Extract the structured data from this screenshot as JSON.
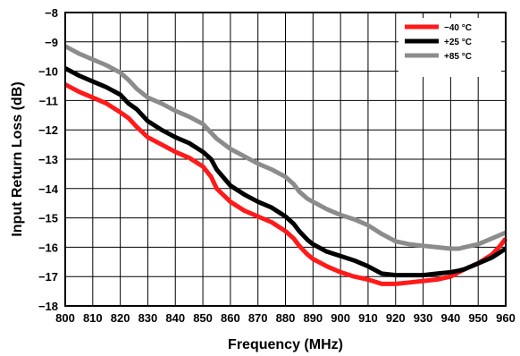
{
  "chart_data": {
    "type": "line",
    "title": "",
    "xlabel": "Frequency (MHz)",
    "ylabel": "Input Return Loss (dB)",
    "xlim": [
      800,
      960
    ],
    "ylim": [
      -18,
      -8
    ],
    "xticks": [
      800,
      810,
      820,
      830,
      840,
      850,
      860,
      870,
      880,
      890,
      900,
      910,
      920,
      930,
      940,
      950,
      960
    ],
    "yticks": [
      -8,
      -9,
      -10,
      -11,
      -12,
      -13,
      -14,
      -15,
      -16,
      -17,
      -18
    ],
    "grid": true,
    "legend_position": "top-right",
    "series": [
      {
        "name": "−40 °C",
        "color": "#ff1a1a",
        "x": [
          800,
          805,
          810,
          815,
          820,
          823,
          826,
          830,
          835,
          840,
          845,
          850,
          853,
          855,
          860,
          865,
          870,
          875,
          880,
          883,
          885,
          888,
          890,
          895,
          900,
          905,
          910,
          915,
          920,
          925,
          930,
          935,
          940,
          943,
          945,
          950,
          955,
          958,
          960
        ],
        "y": [
          -10.45,
          -10.7,
          -10.9,
          -11.1,
          -11.4,
          -11.6,
          -11.9,
          -12.25,
          -12.5,
          -12.75,
          -12.95,
          -13.25,
          -13.6,
          -14.0,
          -14.45,
          -14.75,
          -14.95,
          -15.15,
          -15.45,
          -15.7,
          -15.95,
          -16.25,
          -16.4,
          -16.65,
          -16.85,
          -17.0,
          -17.1,
          -17.25,
          -17.25,
          -17.2,
          -17.15,
          -17.1,
          -17.0,
          -16.85,
          -16.75,
          -16.55,
          -16.25,
          -15.95,
          -15.7
        ]
      },
      {
        "name": "+25 °C",
        "color": "#000000",
        "x": [
          800,
          805,
          810,
          815,
          820,
          823,
          826,
          830,
          835,
          840,
          845,
          850,
          853,
          855,
          860,
          865,
          870,
          875,
          880,
          883,
          885,
          888,
          890,
          895,
          900,
          905,
          910,
          915,
          920,
          925,
          930,
          935,
          940,
          943,
          945,
          950,
          955,
          960
        ],
        "y": [
          -9.9,
          -10.15,
          -10.35,
          -10.55,
          -10.8,
          -11.1,
          -11.3,
          -11.7,
          -12.0,
          -12.25,
          -12.45,
          -12.75,
          -13.0,
          -13.35,
          -13.9,
          -14.2,
          -14.45,
          -14.65,
          -14.95,
          -15.2,
          -15.45,
          -15.75,
          -15.9,
          -16.15,
          -16.3,
          -16.45,
          -16.65,
          -16.9,
          -16.95,
          -16.95,
          -16.95,
          -16.9,
          -16.85,
          -16.8,
          -16.75,
          -16.55,
          -16.35,
          -16.05
        ]
      },
      {
        "name": "+85 °C",
        "color": "#8c8c8c",
        "x": [
          800,
          805,
          810,
          815,
          820,
          823,
          826,
          830,
          835,
          840,
          845,
          850,
          853,
          855,
          860,
          865,
          870,
          875,
          880,
          883,
          885,
          888,
          890,
          895,
          900,
          905,
          910,
          915,
          920,
          925,
          930,
          935,
          940,
          943,
          945,
          950,
          955,
          960
        ],
        "y": [
          -9.15,
          -9.4,
          -9.6,
          -9.8,
          -10.05,
          -10.3,
          -10.6,
          -10.9,
          -11.1,
          -11.35,
          -11.55,
          -11.8,
          -12.1,
          -12.3,
          -12.65,
          -12.9,
          -13.15,
          -13.35,
          -13.6,
          -13.85,
          -14.1,
          -14.35,
          -14.45,
          -14.7,
          -14.9,
          -15.05,
          -15.25,
          -15.55,
          -15.8,
          -15.9,
          -15.95,
          -16.0,
          -16.05,
          -16.05,
          -16.0,
          -15.9,
          -15.7,
          -15.5
        ]
      }
    ]
  }
}
